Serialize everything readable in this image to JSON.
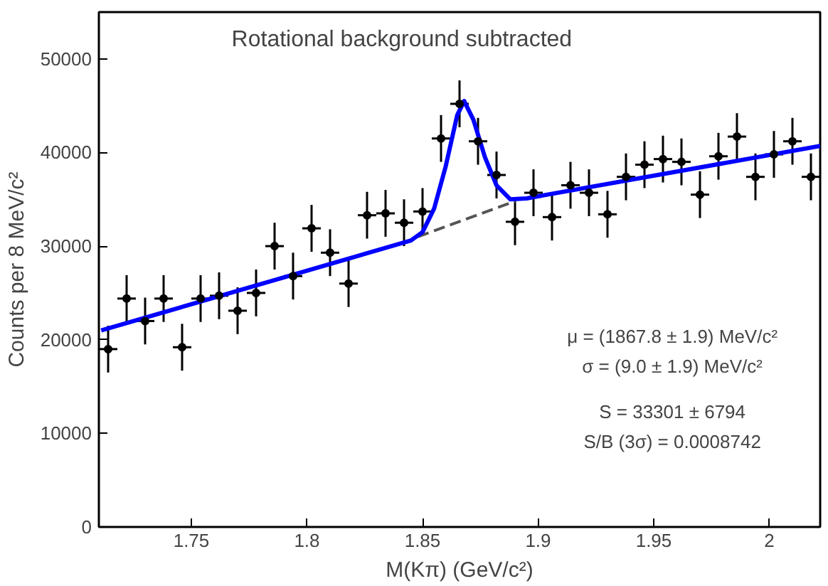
{
  "chart_data": {
    "type": "scatter",
    "xlabel": "M(Kπ) (GeV/c²)",
    "ylabel": "Counts per 8 MeV/c²",
    "annotations": [
      "Rotational background subtracted",
      "μ = (1867.8 ± 1.9) MeV/c²",
      "σ = (9.0 ± 1.9) MeV/c²",
      "S = 33301 ± 6794",
      "S/B (3σ) = 0.0008742"
    ],
    "xlim": [
      1.71,
      2.022
    ],
    "ylim": [
      0,
      55000
    ],
    "xticks": [
      1.75,
      1.8,
      1.85,
      1.9,
      1.95,
      2
    ],
    "yticks": [
      0,
      10000,
      20000,
      30000,
      40000,
      50000
    ],
    "grid": false,
    "series": [
      {
        "marker": "circle",
        "color": "#000000",
        "x": [
          1.714,
          1.722,
          1.73,
          1.738,
          1.746,
          1.754,
          1.762,
          1.77,
          1.778,
          1.786,
          1.794,
          1.802,
          1.81,
          1.818,
          1.826,
          1.834,
          1.842,
          1.85,
          1.858,
          1.866,
          1.874,
          1.882,
          1.89,
          1.898,
          1.906,
          1.914,
          1.922,
          1.93,
          1.938,
          1.946,
          1.954,
          1.962,
          1.97,
          1.978,
          1.986,
          1.994,
          2.002,
          2.01,
          2.018
        ],
        "values": [
          19000,
          24400,
          22000,
          24400,
          19200,
          24400,
          24700,
          23100,
          25000,
          30000,
          26800,
          31900,
          29300,
          26000,
          33300,
          33500,
          32500,
          33700,
          41500,
          45200,
          41200,
          37600,
          32600,
          35700,
          33100,
          36500,
          35700,
          33400,
          37400,
          38700,
          39300,
          39000,
          35500,
          39600,
          41700,
          37400,
          39800,
          41200,
          37400
        ],
        "errors": [
          2500,
          2500,
          2500,
          2500,
          2500,
          2500,
          2500,
          2500,
          2500,
          2500,
          2500,
          2500,
          2500,
          2500,
          2500,
          2500,
          2500,
          2500,
          2500,
          2500,
          2500,
          2500,
          2500,
          2500,
          2500,
          2500,
          2500,
          2500,
          2500,
          2500,
          2500,
          2500,
          2500,
          2500,
          2500,
          2500,
          2500,
          2500,
          2500
        ],
        "xerrors": [
          0.004,
          0.004,
          0.004,
          0.004,
          0.004,
          0.004,
          0.004,
          0.004,
          0.004,
          0.004,
          0.004,
          0.004,
          0.004,
          0.004,
          0.004,
          0.004,
          0.004,
          0.004,
          0.004,
          0.004,
          0.004,
          0.004,
          0.004,
          0.004,
          0.004,
          0.004,
          0.004,
          0.004,
          0.004,
          0.004,
          0.004,
          0.004,
          0.004,
          0.004,
          0.004,
          0.004,
          0.004,
          0.004,
          0.004
        ]
      },
      {
        "type": "line",
        "color": "#555555",
        "line_style": "dashed",
        "x": [
          1.848,
          1.89
        ],
        "values": [
          31000,
          34800
        ]
      },
      {
        "type": "line",
        "color": "#0000ff",
        "line_style": "solid",
        "x": [
          1.711,
          1.845,
          1.85,
          1.855,
          1.86,
          1.865,
          1.868,
          1.872,
          1.877,
          1.882,
          1.888,
          1.895,
          2.022
        ],
        "values": [
          21000,
          30600,
          31500,
          34000,
          38500,
          44000,
          45500,
          43500,
          39500,
          36500,
          35000,
          35100,
          40700
        ]
      }
    ]
  }
}
